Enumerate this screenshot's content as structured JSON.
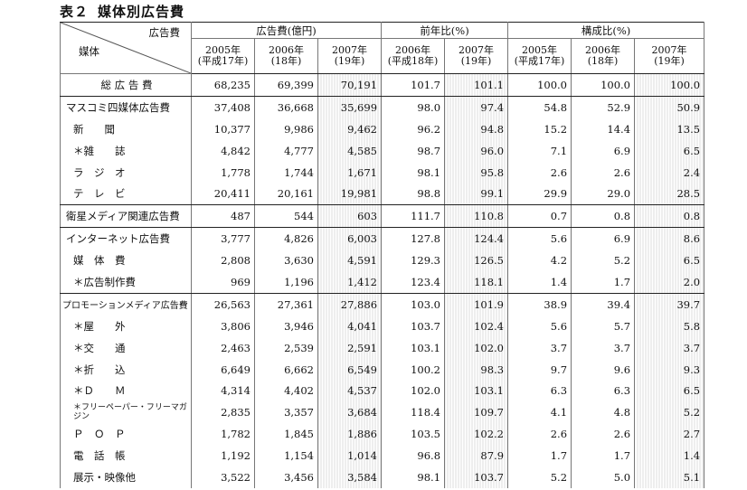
{
  "title": {
    "number": "表２",
    "text": "媒体別広告費"
  },
  "header": {
    "corner_top": "広告費",
    "corner_bottom": "媒体",
    "groups": [
      "広告費(億円)",
      "前年比(%)",
      "構成比(%)"
    ],
    "years": [
      {
        "line1": "2005年",
        "line2": "(平成17年)"
      },
      {
        "line1": "2006年",
        "line2": "(18年)"
      },
      {
        "line1": "2007年",
        "line2": "(19年)"
      },
      {
        "line1": "2006年",
        "line2": "(平成18年)"
      },
      {
        "line1": "2007年",
        "line2": "(19年)"
      },
      {
        "line1": "2005年",
        "line2": "(平成17年)"
      },
      {
        "line1": "2006年",
        "line2": "(18年)"
      },
      {
        "line1": "2007年",
        "line2": "(19年)"
      }
    ]
  },
  "rows": [
    {
      "label": "総 広 告 費",
      "values": [
        "68,235",
        "69,399",
        "70,191",
        "101.7",
        "101.1",
        "100.0",
        "100.0",
        "100.0"
      ]
    },
    {
      "label": "マスコミ四媒体広告費",
      "values": [
        "37,408",
        "36,668",
        "35,699",
        "98.0",
        "97.4",
        "54.8",
        "52.9",
        "50.9"
      ]
    },
    {
      "label": "新　　聞",
      "values": [
        "10,377",
        "9,986",
        "9,462",
        "96.2",
        "94.8",
        "15.2",
        "14.4",
        "13.5"
      ]
    },
    {
      "label": "＊雑　　誌",
      "values": [
        "4,842",
        "4,777",
        "4,585",
        "98.7",
        "96.0",
        "7.1",
        "6.9",
        "6.5"
      ]
    },
    {
      "label": "ラ　ジ　オ",
      "values": [
        "1,778",
        "1,744",
        "1,671",
        "98.1",
        "95.8",
        "2.6",
        "2.6",
        "2.4"
      ]
    },
    {
      "label": "テ　レ　ビ",
      "values": [
        "20,411",
        "20,161",
        "19,981",
        "98.8",
        "99.1",
        "29.9",
        "29.0",
        "28.5"
      ]
    },
    {
      "label": "衛星メディア関連広告費",
      "values": [
        "487",
        "544",
        "603",
        "111.7",
        "110.8",
        "0.7",
        "0.8",
        "0.8"
      ]
    },
    {
      "label": "インターネット広告費",
      "values": [
        "3,777",
        "4,826",
        "6,003",
        "127.8",
        "124.4",
        "5.6",
        "6.9",
        "8.6"
      ]
    },
    {
      "label": "媒　体　費",
      "values": [
        "2,808",
        "3,630",
        "4,591",
        "129.3",
        "126.5",
        "4.2",
        "5.2",
        "6.5"
      ]
    },
    {
      "label": "＊広告制作費",
      "values": [
        "969",
        "1,196",
        "1,412",
        "123.4",
        "118.1",
        "1.4",
        "1.7",
        "2.0"
      ]
    },
    {
      "label": "プロモーションメディア広告費",
      "values": [
        "26,563",
        "27,361",
        "27,886",
        "103.0",
        "101.9",
        "38.9",
        "39.4",
        "39.7"
      ]
    },
    {
      "label": "＊屋　　外",
      "values": [
        "3,806",
        "3,946",
        "4,041",
        "103.7",
        "102.4",
        "5.6",
        "5.7",
        "5.8"
      ]
    },
    {
      "label": "＊交　　通",
      "values": [
        "2,463",
        "2,539",
        "2,591",
        "103.1",
        "102.0",
        "3.7",
        "3.7",
        "3.7"
      ]
    },
    {
      "label": "＊折　　込",
      "values": [
        "6,649",
        "6,662",
        "6,549",
        "100.2",
        "98.3",
        "9.7",
        "9.6",
        "9.3"
      ]
    },
    {
      "label": "＊Ｄ　　Ｍ",
      "values": [
        "4,314",
        "4,402",
        "4,537",
        "102.0",
        "103.1",
        "6.3",
        "6.3",
        "6.5"
      ]
    },
    {
      "label": "＊フリーペーパー・フリーマガジン",
      "values": [
        "2,835",
        "3,357",
        "3,684",
        "118.4",
        "109.7",
        "4.1",
        "4.8",
        "5.2"
      ]
    },
    {
      "label": "Ｐ　Ｏ　Ｐ",
      "values": [
        "1,782",
        "1,845",
        "1,886",
        "103.5",
        "102.2",
        "2.6",
        "2.6",
        "2.7"
      ]
    },
    {
      "label": "電　話　帳",
      "values": [
        "1,192",
        "1,154",
        "1,014",
        "96.8",
        "87.9",
        "1.7",
        "1.7",
        "1.4"
      ]
    },
    {
      "label": "展示・映像他",
      "values": [
        "3,522",
        "3,456",
        "3,584",
        "98.1",
        "103.7",
        "5.2",
        "5.0",
        "5.1"
      ]
    }
  ]
}
